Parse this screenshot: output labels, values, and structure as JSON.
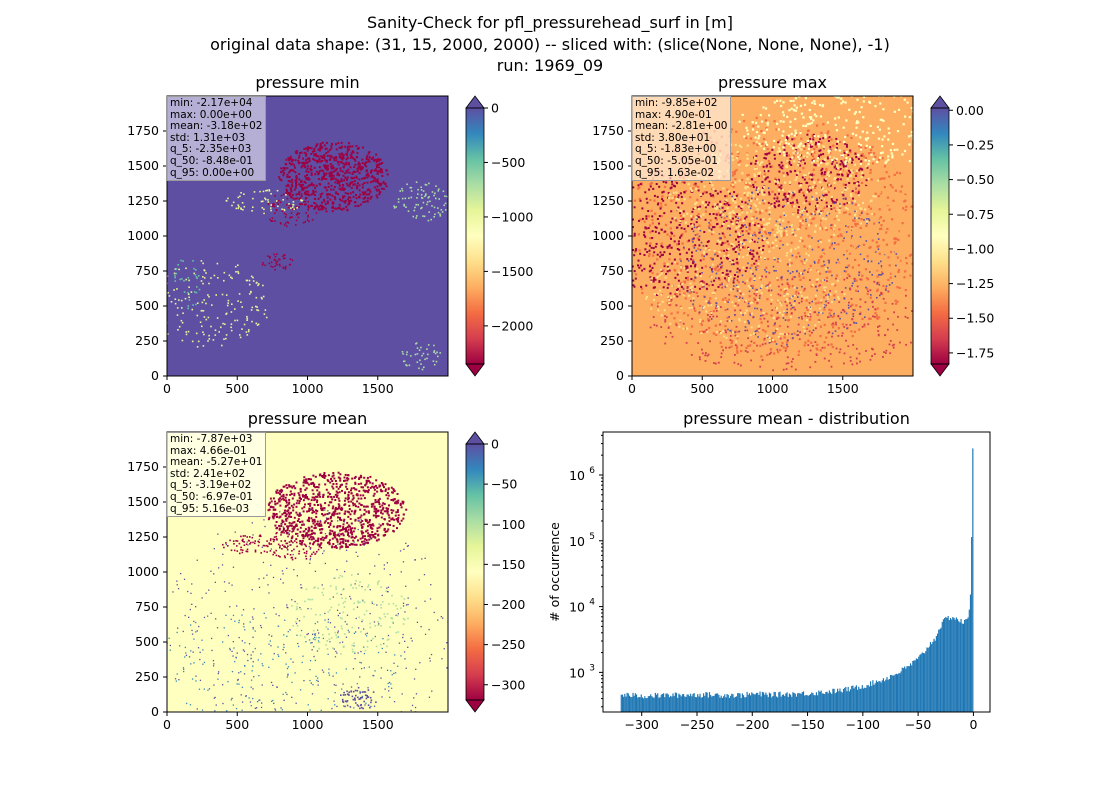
{
  "figure": {
    "title_lines": [
      "Sanity-Check for pfl_pressurehead_surf in [m]",
      "original data shape: (31, 15, 2000, 2000) -- sliced with: (slice(None, None, None), -1)",
      "run: 1969_09"
    ]
  },
  "colors": {
    "background": "#5e4fa2",
    "histogram_bar": "#1f77b4",
    "spectral_colormap": [
      "#9e0142",
      "#d53e4f",
      "#f46d43",
      "#fdae61",
      "#fee08b",
      "#ffffbf",
      "#e6f598",
      "#abdda4",
      "#66c2a5",
      "#3288bd",
      "#5e4fa2"
    ]
  },
  "chart_data": [
    {
      "type": "heatmap",
      "title": "pressure min",
      "x_ticks": [
        "0",
        "500",
        "1000",
        "1500"
      ],
      "y_ticks": [
        "0",
        "250",
        "500",
        "750",
        "1000",
        "1250",
        "1500",
        "1750"
      ],
      "xlim": [
        0,
        2000
      ],
      "ylim": [
        0,
        2000
      ],
      "colorbar": {
        "vmin": -2350,
        "vmax": 0,
        "ticks": [
          "0",
          "−500",
          "−1000",
          "−1500",
          "−2000"
        ],
        "tick_values": [
          0,
          -500,
          -1000,
          -1500,
          -2000
        ],
        "extend": "both",
        "colormap": "Spectral"
      },
      "stats": [
        "min: -2.17e+04",
        "max: 0.00e+00",
        "mean: -3.18e+02",
        "std: 1.31e+03",
        "q_5: -2.35e+03",
        "q_50: -8.48e-01",
        "q_95: 0.00e+00"
      ]
    },
    {
      "type": "heatmap",
      "title": "pressure max",
      "x_ticks": [
        "0",
        "500",
        "1000",
        "1500"
      ],
      "y_ticks": [
        "0",
        "250",
        "500",
        "750",
        "1000",
        "1250",
        "1500",
        "1750"
      ],
      "xlim": [
        0,
        2000
      ],
      "ylim": [
        0,
        2000
      ],
      "colorbar": {
        "vmin": -1.83,
        "vmax": 0.0163,
        "ticks": [
          "0.00",
          "−0.25",
          "−0.50",
          "−0.75",
          "−1.00",
          "−1.25",
          "−1.50",
          "−1.75"
        ],
        "tick_values": [
          0,
          -0.25,
          -0.5,
          -0.75,
          -1.0,
          -1.25,
          -1.5,
          -1.75
        ],
        "extend": "both",
        "colormap": "Spectral"
      },
      "stats": [
        "min: -9.85e+02",
        "max: 4.90e-01",
        "mean: -2.81e+00",
        "std: 3.80e+01",
        "q_5: -1.83e+00",
        "q_50: -5.05e-01",
        "q_95: 1.63e-02"
      ]
    },
    {
      "type": "heatmap",
      "title": "pressure mean",
      "x_ticks": [
        "0",
        "500",
        "1000",
        "1500"
      ],
      "y_ticks": [
        "0",
        "250",
        "500",
        "750",
        "1000",
        "1250",
        "1500",
        "1750"
      ],
      "xlim": [
        0,
        2000
      ],
      "ylim": [
        0,
        2000
      ],
      "colorbar": {
        "vmin": -319,
        "vmax": 0.00516,
        "ticks": [
          "0",
          "−50",
          "−100",
          "−150",
          "−200",
          "−250",
          "−300"
        ],
        "tick_values": [
          0,
          -50,
          -100,
          -150,
          -200,
          -250,
          -300
        ],
        "extend": "both",
        "colormap": "Spectral"
      },
      "stats": [
        "min: -7.87e+03",
        "max: 4.66e-01",
        "mean: -5.27e+01",
        "std: 2.41e+02",
        "q_5: -3.19e+02",
        "q_50: -6.97e-01",
        "q_95: 5.16e-03"
      ]
    },
    {
      "type": "bar",
      "title": "pressure mean - distribution",
      "ylabel": "# of occurrence",
      "yscale": "log",
      "xlim": [
        -335,
        15
      ],
      "ylim": [
        250,
        4500000
      ],
      "x_ticks": [
        "−300",
        "−250",
        "−200",
        "−150",
        "−100",
        "−50",
        "0"
      ],
      "x_tick_values": [
        -300,
        -250,
        -200,
        -150,
        -100,
        -50,
        0
      ],
      "y_ticks": [
        "10",
        "10",
        "10"
      ],
      "y_tick_exponents": [
        "3",
        "4",
        "5"
      ],
      "y_tick_values": [
        1000,
        10000,
        100000
      ],
      "bin_range": [
        -319,
        0
      ],
      "control_points": [
        [
          -319,
          460
        ],
        [
          -300,
          440
        ],
        [
          -250,
          460
        ],
        [
          -210,
          450
        ],
        [
          -200,
          470
        ],
        [
          -180,
          460
        ],
        [
          -150,
          480
        ],
        [
          -120,
          530
        ],
        [
          -100,
          620
        ],
        [
          -90,
          700
        ],
        [
          -80,
          800
        ],
        [
          -70,
          950
        ],
        [
          -60,
          1200
        ],
        [
          -50,
          1600
        ],
        [
          -45,
          2000
        ],
        [
          -40,
          2600
        ],
        [
          -35,
          3200
        ],
        [
          -30,
          5000
        ],
        [
          -25,
          6500
        ],
        [
          -20,
          7000
        ],
        [
          -15,
          6500
        ],
        [
          -10,
          5800
        ],
        [
          -6,
          6000
        ],
        [
          -4,
          8000
        ],
        [
          -3,
          12000
        ],
        [
          -2,
          30000
        ],
        [
          -1.3,
          340000
        ],
        [
          -0.5,
          2900000
        ],
        [
          0,
          2900000
        ]
      ]
    }
  ]
}
